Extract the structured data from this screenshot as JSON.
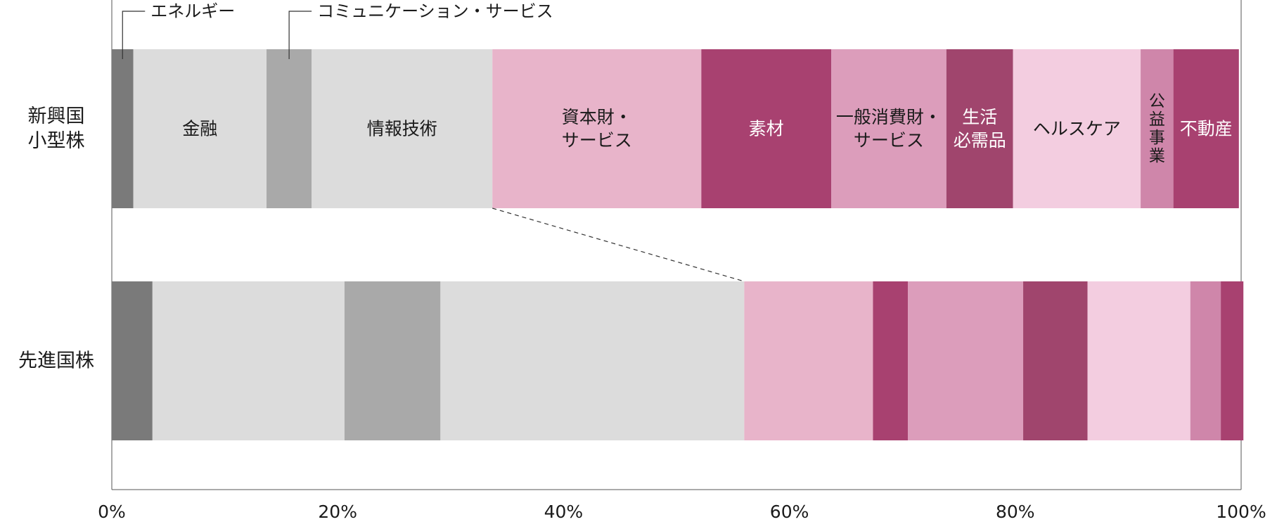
{
  "chart_data": {
    "type": "bar",
    "orientation": "horizontal",
    "stacked": true,
    "percent": true,
    "categories": [
      "新興国\n小型株",
      "先進国株"
    ],
    "series": [
      {
        "name": "エネルギー",
        "display": "エネルギー",
        "color": "#7a7a7a",
        "values": [
          1.9,
          3.6
        ]
      },
      {
        "name": "金融",
        "display": "金融",
        "color": "#dcdcdc",
        "values": [
          11.8,
          17.0
        ]
      },
      {
        "name": "コミュニケーション・サービス",
        "display": "コミュニケーション・サービス",
        "color": "#a9a9a9",
        "values": [
          4.0,
          8.5
        ]
      },
      {
        "name": "情報技術",
        "display": "情報技術",
        "color": "#dcdcdc",
        "values": [
          16.0,
          26.9
        ]
      },
      {
        "name": "資本財・サービス",
        "display": "資本財・\nサービス",
        "color": "#e8b4ca",
        "values": [
          18.5,
          11.4
        ]
      },
      {
        "name": "素材",
        "display": "素材",
        "color": "#a84170",
        "values": [
          11.5,
          3.1
        ]
      },
      {
        "name": "一般消費財・サービス",
        "display": "一般消費財・\nサービス",
        "color": "#dc9dbb",
        "values": [
          10.2,
          10.2
        ]
      },
      {
        "name": "生活必需品",
        "display": "生活\n必需品",
        "color": "#a0456d",
        "values": [
          5.9,
          5.7
        ]
      },
      {
        "name": "ヘルスケア",
        "display": "ヘルスケア",
        "color": "#f3cde0",
        "values": [
          11.3,
          9.1
        ]
      },
      {
        "name": "公益事業",
        "display": "公\n益\n事\n業",
        "color": "#cf86aa",
        "values": [
          2.9,
          2.7
        ]
      },
      {
        "name": "不動産",
        "display": "不動産",
        "color": "#a84170",
        "values": [
          5.8,
          2.0
        ]
      }
    ],
    "xlim": [
      0,
      100
    ],
    "x_ticks": [
      "0%",
      "20%",
      "40%",
      "60%",
      "80%",
      "100%"
    ],
    "legend": "callouts-top",
    "grid": false
  }
}
